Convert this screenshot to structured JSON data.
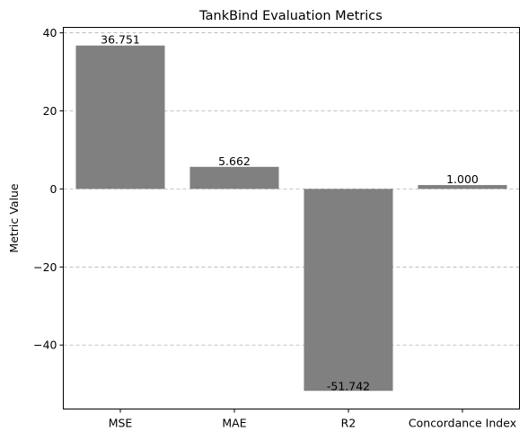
{
  "chart_data": {
    "type": "bar",
    "title": "TankBind Evaluation Metrics",
    "xlabel": "",
    "ylabel": "Metric Value",
    "categories": [
      "MSE",
      "MAE",
      "R2",
      "Concordance Index"
    ],
    "values": [
      36.751,
      5.662,
      -51.742,
      1.0
    ],
    "value_labels": [
      "36.751",
      "5.662",
      "-51.742",
      "1.000"
    ],
    "ylim": [
      -56.4,
      41.4
    ],
    "yticks": [
      40,
      20,
      0,
      -20,
      -40
    ],
    "ytick_labels": [
      "40",
      "20",
      "0",
      "−20",
      "−40"
    ],
    "grid": "y-dashed",
    "bar_color": "#808080"
  }
}
